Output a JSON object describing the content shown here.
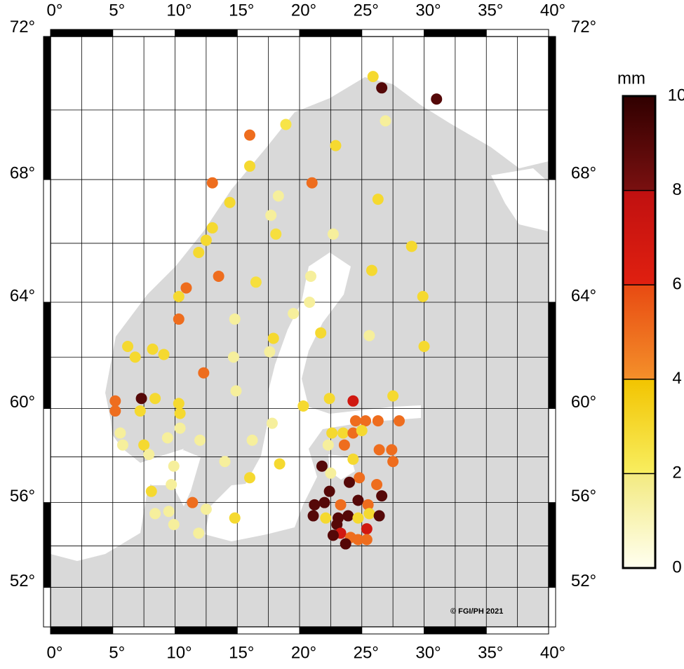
{
  "chart_data": {
    "type": "scatter",
    "credit": "© FGI/PH 2021",
    "xlim": [
      0,
      40
    ],
    "ylim": [
      50,
      72.1
    ],
    "xticks": [
      {
        "value": 0,
        "label": "0°"
      },
      {
        "value": 5,
        "label": "5°"
      },
      {
        "value": 10,
        "label": "10°"
      },
      {
        "value": 15,
        "label": "15°"
      },
      {
        "value": 20,
        "label": "20°"
      },
      {
        "value": 25,
        "label": "25°"
      },
      {
        "value": 30,
        "label": "30°"
      },
      {
        "value": 35,
        "label": "35°"
      },
      {
        "value": 40,
        "label": "40°"
      }
    ],
    "yticks": [
      {
        "value": 52,
        "label": "52°"
      },
      {
        "value": 56,
        "label": "56°"
      },
      {
        "value": 60,
        "label": "60°"
      },
      {
        "value": 64,
        "label": "64°"
      },
      {
        "value": 68,
        "label": "68°"
      },
      {
        "value": 72,
        "label": "72°"
      }
    ],
    "grid": true,
    "projection": "mercator",
    "x": [
      25.9,
      26.6,
      31.0,
      26.9,
      18.9,
      16.0,
      22.9,
      16.0,
      13.0,
      21.0,
      26.3,
      14.4,
      18.3,
      17.7,
      13.0,
      18.1,
      22.7,
      12.5,
      11.9,
      29.0,
      25.8,
      13.5,
      20.9,
      16.5,
      10.9,
      10.3,
      29.9,
      20.8,
      19.5,
      14.8,
      10.3,
      21.7,
      17.9,
      25.6,
      6.2,
      17.6,
      8.2,
      9.1,
      6.8,
      30.0,
      14.7,
      12.3,
      14.9,
      7.3,
      8.4,
      22.4,
      27.5,
      5.2,
      24.3,
      10.3,
      20.3,
      7.2,
      5.2,
      10.4,
      17.8,
      24.5,
      25.3,
      26.3,
      28.0,
      10.4,
      5.6,
      22.6,
      23.5,
      24.3,
      25.0,
      9.4,
      12.0,
      16.2,
      5.8,
      7.5,
      22.3,
      23.6,
      26.4,
      27.4,
      7.9,
      24.3,
      27.5,
      9.9,
      14.0,
      18.4,
      21.8,
      22.5,
      24.8,
      16.0,
      24.0,
      26.2,
      9.7,
      8.1,
      22.4,
      26.6,
      21.2,
      22.0,
      23.3,
      24.7,
      11.4,
      25.5,
      12.5,
      9.5,
      8.4,
      21.1,
      22.1,
      23.1,
      23.9,
      24.7,
      25.6,
      26.4,
      14.8,
      9.9,
      23.0,
      25.4,
      23.3,
      22.7,
      24.1,
      24.7,
      25.4,
      23.7,
      11.9
    ],
    "y": [
      70.9,
      70.6,
      70.3,
      69.7,
      69.6,
      69.3,
      69.0,
      68.4,
      67.9,
      67.9,
      67.4,
      67.3,
      67.5,
      66.9,
      66.5,
      66.3,
      66.3,
      66.1,
      65.7,
      65.9,
      65.1,
      64.9,
      64.9,
      64.7,
      64.5,
      64.2,
      64.2,
      64.0,
      63.6,
      63.4,
      63.4,
      62.9,
      62.7,
      62.8,
      62.4,
      62.2,
      62.3,
      62.1,
      62.0,
      62.4,
      62.0,
      61.4,
      60.7,
      60.4,
      60.4,
      60.4,
      60.5,
      60.3,
      60.3,
      60.2,
      60.1,
      59.9,
      59.9,
      59.8,
      59.4,
      59.5,
      59.5,
      59.5,
      59.5,
      59.2,
      59.0,
      59.0,
      59.0,
      59.0,
      59.1,
      58.8,
      58.7,
      58.7,
      58.5,
      58.5,
      58.5,
      58.5,
      58.3,
      58.3,
      58.1,
      57.9,
      57.8,
      57.6,
      57.8,
      57.7,
      57.6,
      57.3,
      57.1,
      57.1,
      56.9,
      56.8,
      56.8,
      56.5,
      56.5,
      56.3,
      55.9,
      56.0,
      55.9,
      56.1,
      56.0,
      55.9,
      55.7,
      55.6,
      55.5,
      55.4,
      55.3,
      55.3,
      55.4,
      55.3,
      55.5,
      55.4,
      55.3,
      55.0,
      55.0,
      54.8,
      54.6,
      54.5,
      54.4,
      54.3,
      54.3,
      54.1,
      54.6
    ],
    "values": [
      3,
      9,
      9,
      1.5,
      2.5,
      5,
      3,
      3,
      5,
      5,
      3,
      3,
      1.5,
      1.5,
      3,
      2.7,
      1.5,
      3,
      3,
      3,
      3,
      5,
      1.5,
      2.7,
      5,
      3,
      3,
      1.5,
      1.5,
      1.5,
      5,
      3,
      3,
      1.5,
      3,
      1.5,
      3,
      3,
      3,
      3,
      1.5,
      5,
      1.5,
      9,
      3,
      3,
      3,
      5,
      7,
      3,
      3,
      3,
      5,
      3,
      1.5,
      5,
      5,
      5,
      5,
      1.5,
      1.5,
      3,
      3,
      5,
      3,
      1.5,
      1.5,
      1.5,
      1.5,
      3,
      1.5,
      5,
      5,
      5,
      1.5,
      3,
      5,
      1.5,
      1.5,
      3,
      9,
      1.5,
      5,
      3,
      9,
      5,
      1.5,
      3,
      9,
      9,
      9,
      9,
      5,
      9,
      5,
      5,
      1.5,
      1.5,
      1.5,
      9,
      3,
      9,
      9,
      3,
      3,
      9,
      3,
      1.5,
      9,
      7,
      7,
      9,
      5,
      5,
      5,
      9,
      1.5
    ],
    "colorbar": {
      "label": "mm",
      "lim": [
        0,
        10
      ],
      "ticks": [
        0,
        2,
        4,
        6,
        8,
        10
      ],
      "colors": [
        [
          "#fffff0",
          "#f3ea80"
        ],
        [
          "#f8ee60",
          "#f2c400"
        ],
        [
          "#f4902a",
          "#e84a12"
        ],
        [
          "#e02010",
          "#c01010"
        ],
        [
          "#7a1010",
          "#300000"
        ]
      ]
    }
  }
}
